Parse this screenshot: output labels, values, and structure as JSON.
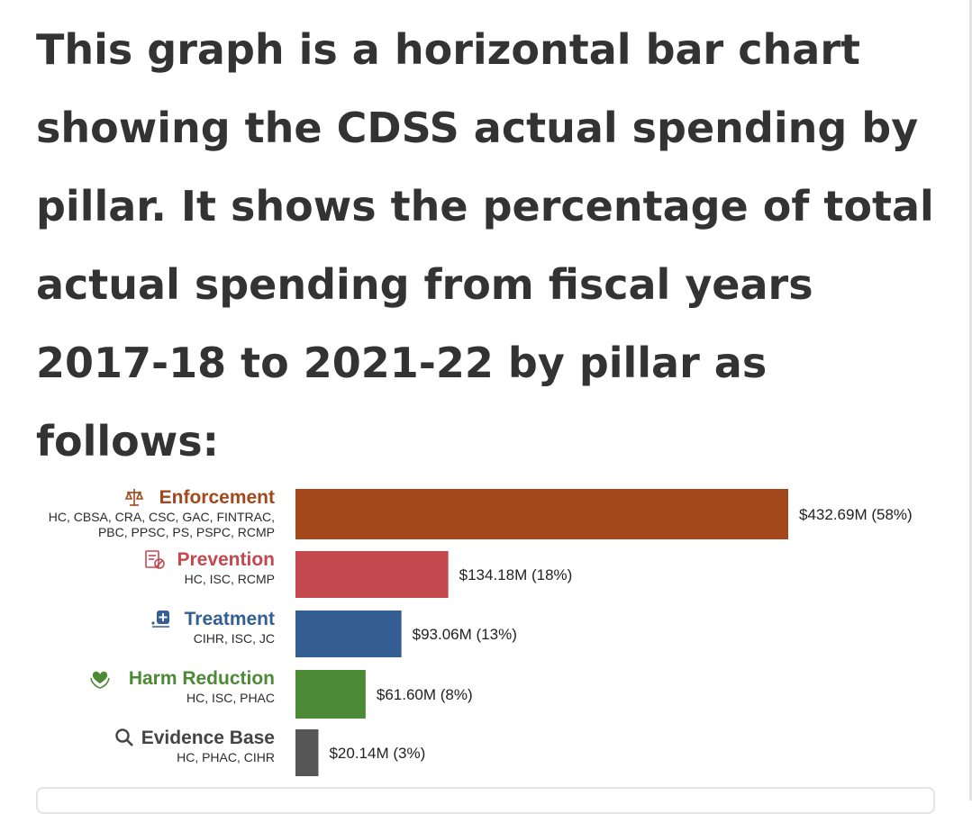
{
  "intro_text": "This graph is a horizontal bar chart showing the CDSS actual spending by pillar. It shows the percentage of total actual spending from fiscal years 2017-18 to 2021-22 by pillar as follows:",
  "chart_data": {
    "type": "bar",
    "orientation": "horizontal",
    "title": "",
    "xlabel": "",
    "ylabel": "",
    "grid": false,
    "categories": [
      "Enforcement",
      "Prevention",
      "Treatment",
      "Harm Reduction",
      "Evidence Base"
    ],
    "agencies": [
      [
        "HC, CBSA, CRA, CSC, GAC, FINTRAC,",
        "PBC, PPSC, PS, PSPC, RCMP"
      ],
      [
        "HC, ISC, RCMP"
      ],
      [
        "CIHR, ISC, JC"
      ],
      [
        "HC, ISC, PHAC"
      ],
      [
        "HC, PHAC, CIHR"
      ]
    ],
    "values": [
      432.69,
      134.18,
      93.06,
      61.6,
      20.14
    ],
    "percent": [
      58,
      18,
      13,
      8,
      3
    ],
    "value_labels": [
      "$432.69M (58%)",
      "$134.18M (18%)",
      "$93.06M (13%)",
      "$61.60M (8%)",
      "$20.14M (3%)"
    ],
    "colors": [
      "#a2481b",
      "#c5484f",
      "#355f94",
      "#4c8a35",
      "#555555"
    ],
    "icons": [
      "scales-of-justice-icon",
      "prevention-document-icon",
      "treatment-medical-icon",
      "heart-hands-icon",
      "magnifier-icon"
    ],
    "xlim": [
      0,
      432.69
    ]
  }
}
